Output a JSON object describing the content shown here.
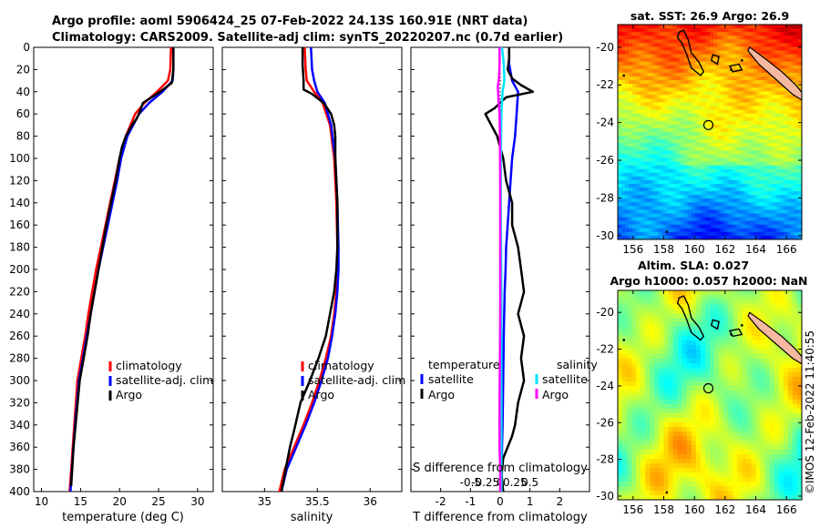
{
  "title": {
    "line1": "Argo profile: aoml 5906424_25 07-Feb-2022 24.13S 160.91E (NRT data)",
    "line2": "Climatology: CARS2009. Satellite-adj clim: synTS_20220207.nc (0.7d earlier)"
  },
  "watermark": "©IMOS 12-Feb-2022 11:40:55",
  "colors": {
    "climatology": "#ff0000",
    "satellite": "#0000ff",
    "argo": "#000000",
    "sat_salinity": "#00e5ff",
    "argo_salinity": "#ff00ff",
    "land": "#f4b9a0"
  },
  "chart_data": [
    {
      "id": "temperature",
      "type": "line",
      "xlabel": "temperature (deg C)",
      "ylabel": "",
      "xlim": [
        9,
        32
      ],
      "ylim": [
        400,
        0
      ],
      "xticks": [
        10,
        15,
        20,
        25,
        30
      ],
      "yticks": [
        0,
        20,
        40,
        60,
        80,
        100,
        120,
        140,
        160,
        180,
        200,
        220,
        240,
        260,
        280,
        300,
        320,
        340,
        360,
        380,
        400
      ],
      "legend": [
        "climatology",
        "satellite-adj. clim",
        "Argo"
      ],
      "legend_position": "lower-right",
      "series": [
        {
          "name": "climatology",
          "color": "#ff0000",
          "x": [
            26.6,
            26.5,
            26.2,
            24.8,
            23.2,
            22.0,
            20.8,
            20.0,
            19.4,
            18.8,
            18.2,
            17.6,
            17.0,
            16.5,
            16.0,
            15.6,
            15.1,
            14.6,
            14.2,
            13.9,
            13.6
          ],
          "y": [
            0,
            20,
            30,
            40,
            50,
            60,
            80,
            100,
            120,
            140,
            160,
            180,
            200,
            220,
            240,
            260,
            280,
            300,
            340,
            370,
            400
          ]
        },
        {
          "name": "satellite-adj. clim",
          "color": "#0000ff",
          "x": [
            26.9,
            26.9,
            26.8,
            25.5,
            23.8,
            22.5,
            21.0,
            20.2,
            19.7,
            19.1,
            18.5,
            17.9,
            17.3,
            16.8,
            16.3,
            15.8,
            15.3,
            14.8,
            14.3,
            14.0,
            13.7
          ],
          "y": [
            0,
            20,
            30,
            40,
            50,
            60,
            80,
            100,
            120,
            140,
            160,
            180,
            200,
            220,
            240,
            260,
            280,
            300,
            340,
            370,
            400
          ]
        },
        {
          "name": "Argo",
          "color": "#000000",
          "x": [
            26.9,
            26.9,
            26.7,
            25.2,
            23.9,
            23.0,
            22.6,
            22.2,
            21.6,
            20.8,
            20.3,
            20.0,
            19.5,
            18.9,
            18.3,
            17.8,
            17.3,
            16.8,
            16.3,
            15.9,
            15.4,
            14.9,
            14.5,
            14.1,
            13.8
          ],
          "y": [
            0,
            20,
            32,
            40,
            46,
            50,
            58,
            64,
            70,
            80,
            90,
            100,
            120,
            140,
            160,
            180,
            200,
            220,
            240,
            260,
            280,
            300,
            330,
            360,
            395
          ]
        }
      ]
    },
    {
      "id": "salinity",
      "type": "line",
      "xlabel": "salinity",
      "xlim": [
        34.6,
        36.3
      ],
      "ylim": [
        400,
        0
      ],
      "xticks": [
        35,
        35.5,
        36
      ],
      "xticklabels": [
        "35",
        "35.5",
        "36"
      ],
      "legend": [
        "climatology",
        "satellite-adj. clim",
        "Argo"
      ],
      "legend_position": "lower-right",
      "series": [
        {
          "name": "climatology",
          "color": "#ff0000",
          "x": [
            35.38,
            35.39,
            35.4,
            35.47,
            35.55,
            35.62,
            35.66,
            35.68,
            35.69,
            35.69,
            35.68,
            35.66,
            35.63,
            35.58,
            35.52,
            35.45,
            35.37,
            35.28,
            35.19,
            35.14
          ],
          "y": [
            0,
            20,
            30,
            40,
            50,
            70,
            100,
            140,
            180,
            200,
            220,
            240,
            260,
            280,
            300,
            320,
            340,
            360,
            380,
            400
          ]
        },
        {
          "name": "satellite-adj. clim",
          "color": "#0000ff",
          "x": [
            35.44,
            35.45,
            35.47,
            35.5,
            35.57,
            35.63,
            35.67,
            35.69,
            35.7,
            35.7,
            35.69,
            35.67,
            35.64,
            35.6,
            35.54,
            35.47,
            35.39,
            35.3,
            35.21,
            35.16
          ],
          "y": [
            0,
            20,
            30,
            40,
            50,
            70,
            100,
            140,
            180,
            200,
            220,
            240,
            260,
            280,
            300,
            320,
            340,
            360,
            380,
            400
          ]
        },
        {
          "name": "Argo",
          "color": "#000000",
          "x": [
            35.36,
            35.36,
            35.37,
            35.37,
            35.45,
            35.56,
            35.63,
            35.66,
            35.67,
            35.67,
            35.69,
            35.69,
            35.68,
            35.66,
            35.62,
            35.58,
            35.51,
            35.43,
            35.34,
            35.28,
            35.24,
            35.2,
            35.16
          ],
          "y": [
            0,
            15,
            30,
            38,
            42,
            50,
            60,
            70,
            80,
            100,
            140,
            180,
            200,
            220,
            240,
            260,
            280,
            300,
            320,
            345,
            360,
            380,
            400
          ]
        }
      ]
    },
    {
      "id": "differences",
      "type": "line",
      "xlabel": "T difference from climatology",
      "toplabel": "S difference from climatology",
      "xlim": [
        -3,
        3
      ],
      "ylim": [
        400,
        0
      ],
      "xticks": [
        -2,
        -1,
        0,
        1,
        2
      ],
      "xticklabels": [
        "-2",
        "-1",
        "0",
        "1",
        "2"
      ],
      "s_xticks": [
        -0.5,
        -0.25,
        0,
        0.25,
        0.5
      ],
      "s_xticklabels": [
        "-0.5",
        "-0.25",
        "0",
        "0.25",
        "0.5"
      ],
      "legend_temperature": {
        "title": "temperature",
        "entries": [
          "satellite",
          "Argo"
        ]
      },
      "legend_salinity": {
        "title": "salinity",
        "entries": [
          "satellite",
          "Argo"
        ]
      },
      "series": [
        {
          "name": "temperature satellite",
          "color": "#0000ff",
          "x": [
            0.3,
            0.3,
            0.4,
            0.6,
            0.55,
            0.5,
            0.4,
            0.35,
            0.3,
            0.25,
            0.2,
            0.18,
            0.15,
            0.12,
            0.1,
            0.08,
            0.06,
            0.05,
            0.05
          ],
          "y": [
            0,
            15,
            30,
            40,
            60,
            80,
            100,
            120,
            140,
            160,
            180,
            200,
            220,
            260,
            300,
            340,
            360,
            380,
            400
          ]
        },
        {
          "name": "temperature Argo",
          "color": "#000000",
          "x": [
            0.3,
            0.3,
            0.25,
            0.4,
            0.7,
            1.1,
            0.2,
            -0.2,
            -0.5,
            -0.3,
            -0.1,
            0.1,
            0.2,
            0.4,
            0.4,
            0.6,
            0.7,
            0.8,
            0.6,
            0.8,
            0.7,
            0.8,
            0.6,
            0.5,
            0.4,
            0.1,
            0.05,
            0.1
          ],
          "y": [
            0,
            10,
            20,
            28,
            34,
            40,
            45,
            55,
            60,
            70,
            80,
            100,
            120,
            140,
            160,
            180,
            200,
            220,
            240,
            260,
            280,
            300,
            320,
            340,
            350,
            370,
            385,
            400
          ]
        },
        {
          "name": "salinity satellite",
          "color": "#00e5ff",
          "x": [
            0.03,
            0.06,
            0.07,
            0.04,
            0.02,
            0.01,
            0.01,
            0.015,
            0.02,
            0.02,
            0.02,
            0.02,
            0.02
          ],
          "y": [
            0,
            15,
            30,
            40,
            60,
            100,
            140,
            180,
            220,
            260,
            300,
            350,
            400
          ]
        },
        {
          "name": "salinity Argo",
          "color": "#ff00ff",
          "x": [
            -0.01,
            -0.01,
            -0.02,
            -0.04,
            -0.03,
            -0.01,
            -0.005,
            0,
            0,
            0,
            0,
            -0.005,
            -0.01,
            -0.01,
            0,
            0
          ],
          "y": [
            0,
            15,
            28,
            35,
            45,
            60,
            80,
            120,
            160,
            200,
            240,
            280,
            320,
            360,
            380,
            400
          ]
        }
      ]
    },
    {
      "id": "sst_map",
      "type": "heatmap",
      "title": "sat. SST: 26.9 Argo: 26.9",
      "xlim": [
        155,
        167
      ],
      "ylim": [
        -30.2,
        -18.8
      ],
      "xticks": [
        156,
        158,
        160,
        162,
        164,
        166
      ],
      "yticks": [
        -20,
        -22,
        -24,
        -26,
        -28,
        -30
      ],
      "argo_position": {
        "lon": 160.91,
        "lat": -24.13
      }
    },
    {
      "id": "sla_map",
      "type": "heatmap",
      "title_line1": "Altim. SLA: 0.027",
      "title_line2": "Argo h1000: 0.057 h2000: NaN",
      "xlim": [
        155,
        167
      ],
      "ylim": [
        -30.2,
        -18.8
      ],
      "xticks": [
        156,
        158,
        160,
        162,
        164,
        166
      ],
      "yticks": [
        -20,
        -22,
        -24,
        -26,
        -28,
        -30
      ],
      "argo_position": {
        "lon": 160.91,
        "lat": -24.13
      }
    }
  ]
}
